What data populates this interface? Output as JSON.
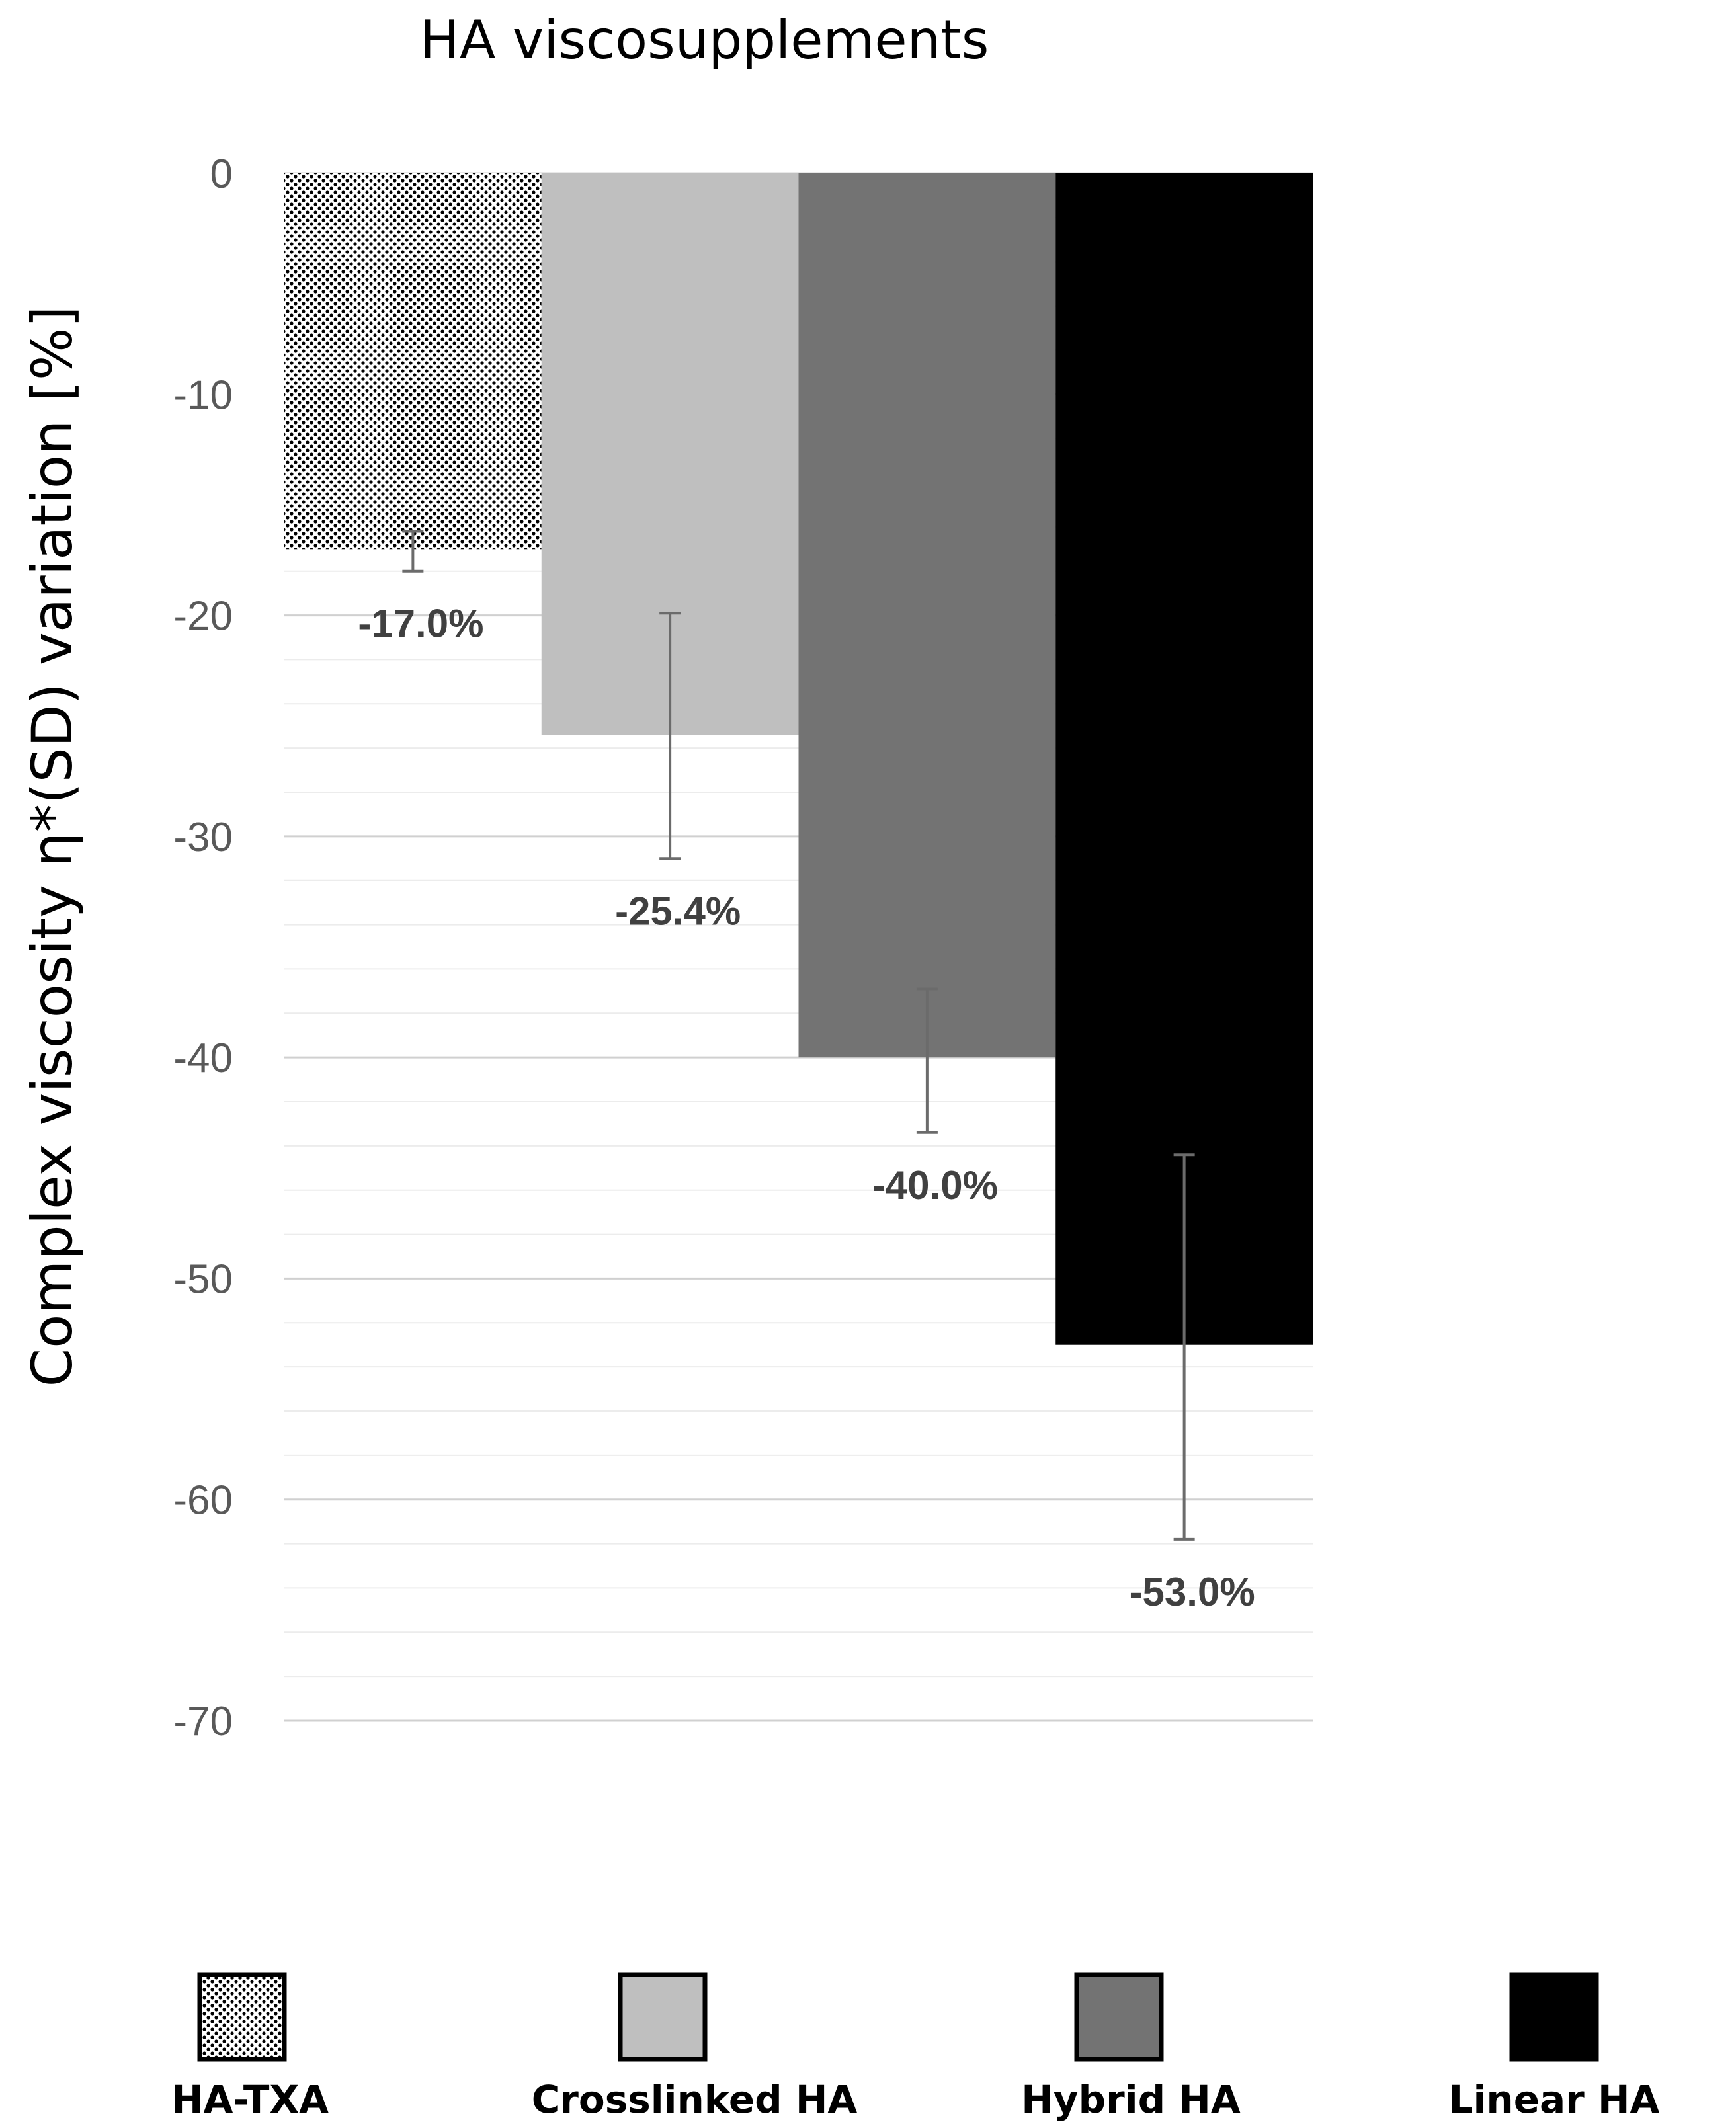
{
  "chart_data": {
    "type": "bar",
    "title": "HA viscosupplements",
    "xlabel": "",
    "ylabel": "Complex viscosity η*(SD) variation [%]",
    "ylim": [
      -70,
      0
    ],
    "yticks": [
      0,
      -10,
      -20,
      -30,
      -40,
      -50,
      -60,
      -70
    ],
    "grid": true,
    "legend_position": "bottom",
    "categories": [
      "HA-TXA",
      "Crosslinked HA",
      "Hybrid HA",
      "Linear HA"
    ],
    "values": [
      -17.0,
      -25.4,
      -40.0,
      -53.0
    ],
    "error_bars": [
      {
        "low": -18.0,
        "high": -16.2
      },
      {
        "low": -31.0,
        "high": -19.9
      },
      {
        "low": -43.4,
        "high": -36.9
      },
      {
        "low": -61.8,
        "high": -44.4
      }
    ],
    "data_labels": [
      "-17.0%",
      "-25.4%",
      "-40.0%",
      "-53.0%"
    ],
    "colors": [
      "#ffffff",
      "#bfbfbf",
      "#737373",
      "#000000"
    ],
    "patterns": [
      "dots",
      "solid",
      "solid",
      "solid"
    ]
  }
}
